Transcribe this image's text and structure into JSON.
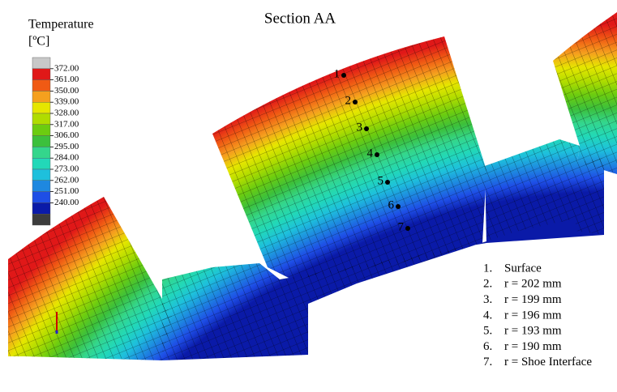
{
  "title": "Section AA",
  "legend": {
    "title": "Temperature",
    "unit": "[ºC]",
    "labels": [
      "372.00",
      "361.00",
      "350.00",
      "339.00",
      "328.00",
      "317.00",
      "306.00",
      "295.00",
      "284.00",
      "273.00",
      "262.00",
      "251.00",
      "240.00"
    ],
    "colors": [
      "#c8c8c8",
      "#e01818",
      "#f05a14",
      "#f5a01e",
      "#e6e600",
      "#b0dc00",
      "#6ccc10",
      "#3cc03c",
      "#34d68c",
      "#22d8b8",
      "#1ec0dc",
      "#1e88e0",
      "#1e4ee6",
      "#0a1aa8",
      "#3c3c3c"
    ]
  },
  "points": [
    {
      "marker": "1",
      "list_marker": "1.",
      "description": "Surface"
    },
    {
      "marker": "2",
      "list_marker": "2.",
      "description": "r = 202 mm"
    },
    {
      "marker": "3",
      "list_marker": "3.",
      "description": "r = 199 mm"
    },
    {
      "marker": "4",
      "list_marker": "4.",
      "description": "r = 196 mm"
    },
    {
      "marker": "5",
      "list_marker": "5.",
      "description": "r = 193 mm"
    },
    {
      "marker": "6",
      "list_marker": "6.",
      "description": "r = 190 mm"
    },
    {
      "marker": "7",
      "list_marker": "7.",
      "description": "r = Shoe Interface"
    }
  ]
}
